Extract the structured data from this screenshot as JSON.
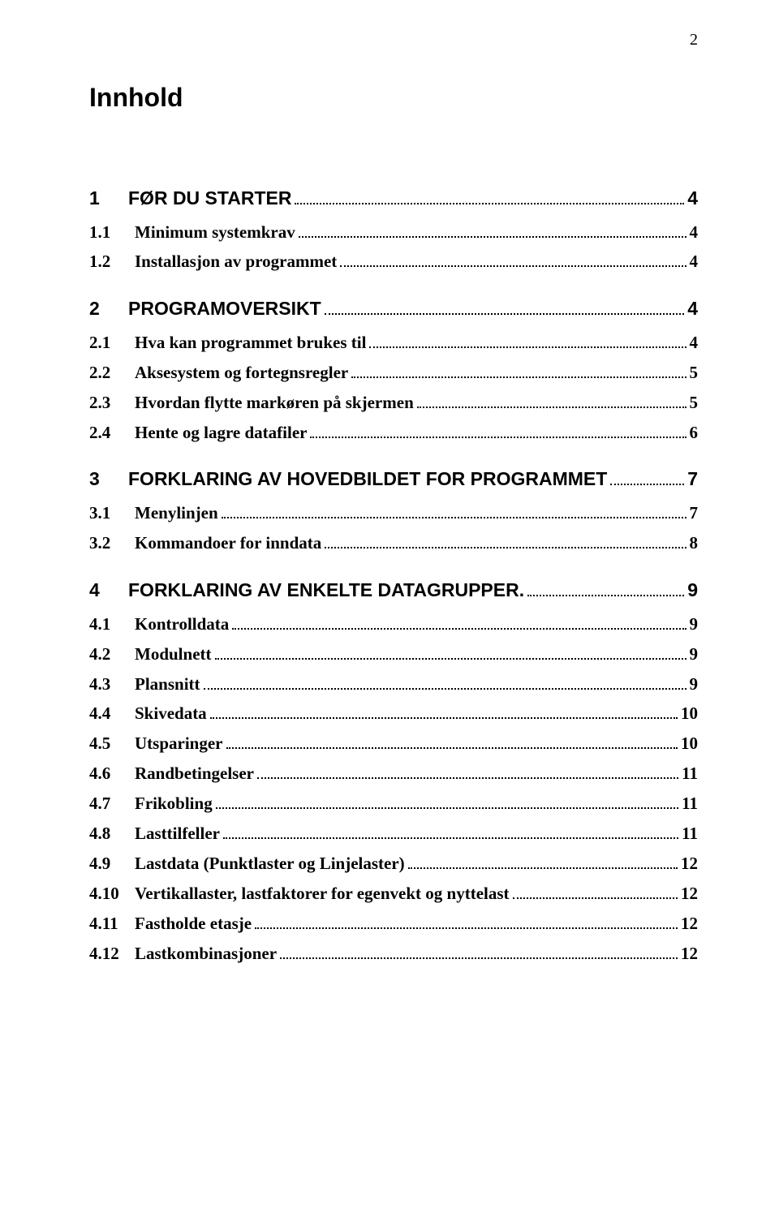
{
  "page_number": "2",
  "title": "Innhold",
  "colors": {
    "text": "#000000",
    "background": "#ffffff"
  },
  "typography": {
    "title_font": "Arial",
    "title_size_pt": 24,
    "title_weight": "bold",
    "level1_font": "Arial",
    "level1_size_pt": 17,
    "level1_weight": "bold",
    "level2_font": "Times New Roman",
    "level2_size_pt": 15,
    "level2_weight": "bold"
  },
  "toc": [
    {
      "level": 1,
      "num": "1",
      "text": "FØR DU STARTER",
      "page": "4"
    },
    {
      "level": 2,
      "num": "1.1",
      "text": "Minimum systemkrav",
      "page": "4"
    },
    {
      "level": 2,
      "num": "1.2",
      "text": "Installasjon av programmet",
      "page": "4"
    },
    {
      "level": 1,
      "num": "2",
      "text": "PROGRAMOVERSIKT",
      "page": "4"
    },
    {
      "level": 2,
      "num": "2.1",
      "text": "Hva kan programmet brukes til",
      "page": "4"
    },
    {
      "level": 2,
      "num": "2.2",
      "text": "Aksesystem og fortegnsregler",
      "page": "5"
    },
    {
      "level": 2,
      "num": "2.3",
      "text": "Hvordan flytte markøren på skjermen",
      "page": "5"
    },
    {
      "level": 2,
      "num": "2.4",
      "text": "Hente og lagre datafiler",
      "page": "6"
    },
    {
      "level": 1,
      "num": "3",
      "text": "FORKLARING AV HOVEDBILDET FOR PROGRAMMET",
      "page": "7"
    },
    {
      "level": 2,
      "num": "3.1",
      "text": "Menylinjen",
      "page": "7"
    },
    {
      "level": 2,
      "num": "3.2",
      "text": "Kommandoer for inndata",
      "page": "8"
    },
    {
      "level": 1,
      "num": "4",
      "text": "FORKLARING AV ENKELTE DATAGRUPPER.",
      "page": "9"
    },
    {
      "level": 2,
      "num": "4.1",
      "text": "Kontrolldata",
      "page": "9"
    },
    {
      "level": 2,
      "num": "4.2",
      "text": "Modulnett",
      "page": "9"
    },
    {
      "level": 2,
      "num": "4.3",
      "text": "Plansnitt",
      "page": "9"
    },
    {
      "level": 2,
      "num": "4.4",
      "text": "Skivedata",
      "page": "10"
    },
    {
      "level": 2,
      "num": "4.5",
      "text": "Utsparinger",
      "page": "10"
    },
    {
      "level": 2,
      "num": "4.6",
      "text": "Randbetingelser",
      "page": "11"
    },
    {
      "level": 2,
      "num": "4.7",
      "text": "Frikobling",
      "page": "11"
    },
    {
      "level": 2,
      "num": "4.8",
      "text": "Lasttilfeller",
      "page": "11"
    },
    {
      "level": 2,
      "num": "4.9",
      "text": "Lastdata (Punktlaster og Linjelaster)",
      "page": "12"
    },
    {
      "level": 2,
      "num": "4.10",
      "text": "Vertikallaster, lastfaktorer for egenvekt og nyttelast",
      "page": "12"
    },
    {
      "level": 2,
      "num": "4.11",
      "text": "Fastholde etasje",
      "page": "12"
    },
    {
      "level": 2,
      "num": "4.12",
      "text": "Lastkombinasjoner",
      "page": "12"
    }
  ]
}
